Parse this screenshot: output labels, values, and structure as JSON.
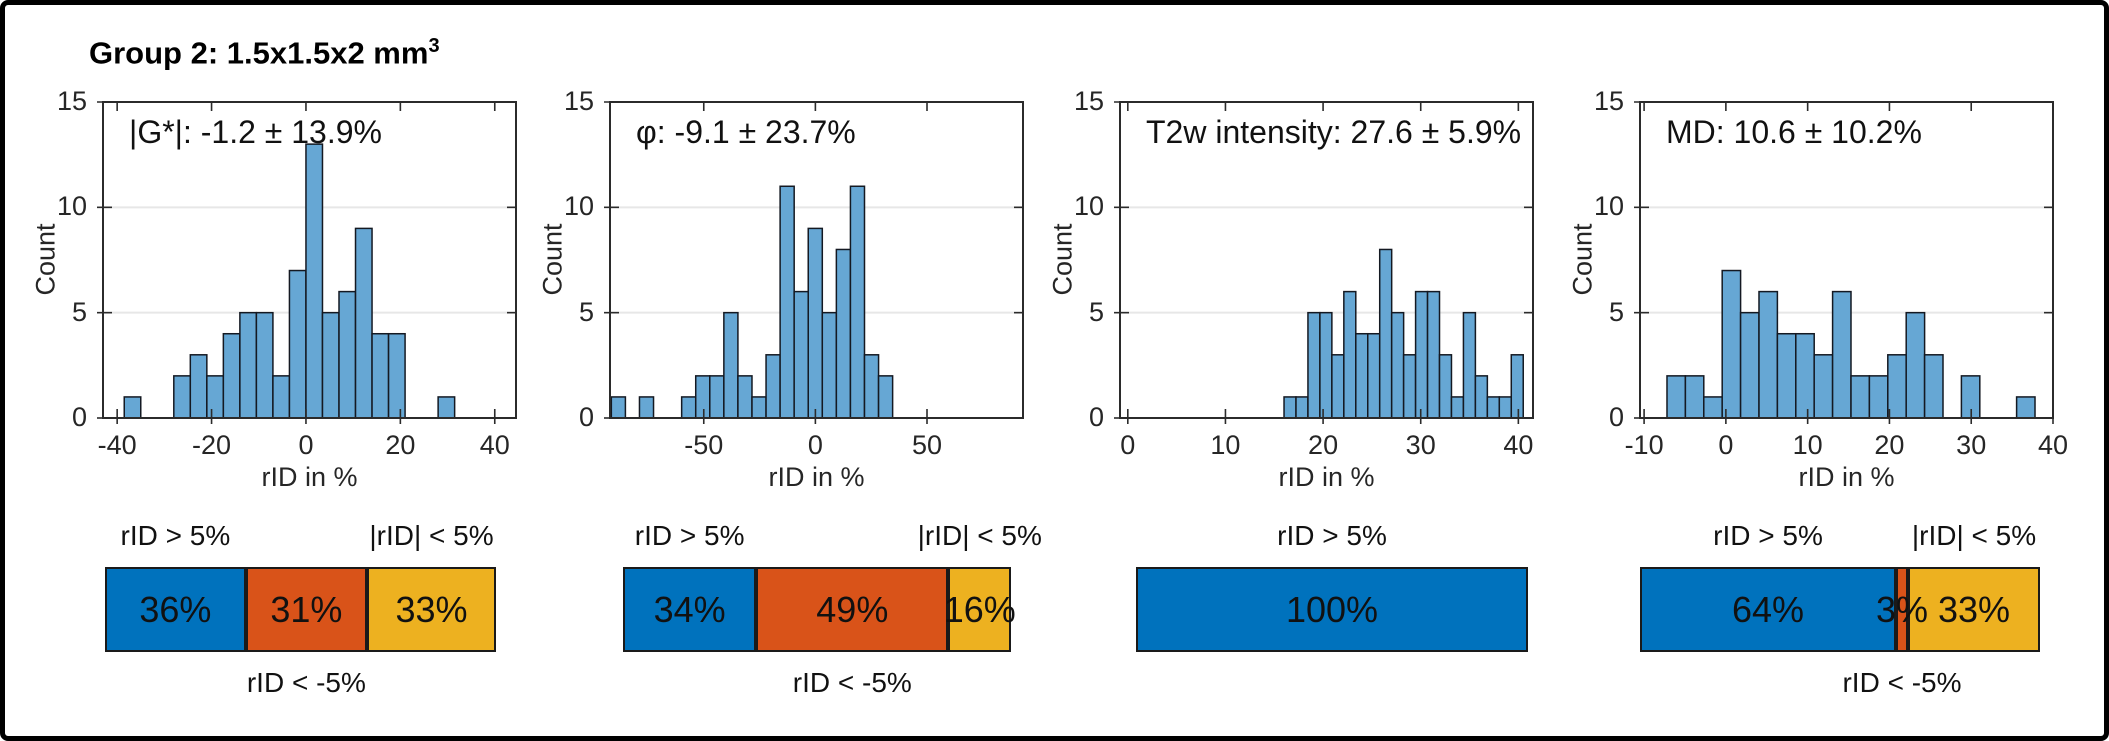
{
  "figure": {
    "title_text": "Group 2: 1.5x1.5x2 mm",
    "title_sup": "3"
  },
  "colors": {
    "blue": "#0072BD",
    "orange": "#D95319",
    "yellow": "#EDB120",
    "hist_fill": "#66A7D4",
    "hist_edge": "#141922",
    "grid": "#E7E7E7",
    "axis": "#2B2B2B",
    "text": "#000000",
    "background": "#FFFFFF",
    "border": "#000000"
  },
  "chart_data": [
    {
      "type": "histogram",
      "annotation": "|G*|: -1.2 ± 13.9%",
      "xlabel": "rID in %",
      "ylabel": "Count",
      "xlim": [
        -43,
        44.5
      ],
      "ylim": [
        0,
        15
      ],
      "xticks": [
        -40,
        -20,
        0,
        20,
        40
      ],
      "yticks": [
        0,
        5,
        10,
        15
      ],
      "grid": "horizontal",
      "bin_start": -38.5,
      "bin_width": 3.5,
      "counts": [
        1,
        0,
        0,
        2,
        3,
        2,
        4,
        5,
        5,
        2,
        7,
        13,
        5,
        6,
        9,
        4,
        4,
        0,
        0,
        1
      ],
      "stacked_bar": {
        "segments": [
          {
            "label": "36%",
            "value": 36,
            "color_key": "blue"
          },
          {
            "label": "31%",
            "value": 31,
            "color_key": "orange"
          },
          {
            "label": "33%",
            "value": 33,
            "color_key": "yellow"
          }
        ],
        "label_top_left": "rID > 5%",
        "label_top_right": "|rID| < 5%",
        "label_bottom": "rID < -5%"
      }
    },
    {
      "type": "histogram",
      "annotation": "φ: -9.1 ± 23.7%",
      "xlabel": "rID in %",
      "ylabel": "Count",
      "xlim": [
        -92,
        93
      ],
      "ylim": [
        0,
        15
      ],
      "xticks": [
        -50,
        0,
        50
      ],
      "yticks": [
        0,
        5,
        10,
        15
      ],
      "grid": "horizontal",
      "bin_start": -91.4,
      "bin_width": 6.3,
      "counts": [
        1,
        0,
        1,
        0,
        0,
        1,
        2,
        2,
        5,
        2,
        1,
        3,
        11,
        6,
        9,
        5,
        8,
        11,
        3,
        2
      ],
      "stacked_bar": {
        "segments": [
          {
            "label": "34%",
            "value": 34,
            "color_key": "blue"
          },
          {
            "label": "49%",
            "value": 49,
            "color_key": "orange"
          },
          {
            "label": "16%",
            "value": 16,
            "color_key": "yellow"
          }
        ],
        "label_top_left": "rID > 5%",
        "label_top_right": "|rID| < 5%",
        "label_bottom": "rID < -5%"
      }
    },
    {
      "type": "histogram",
      "annotation": "T2w intensity: 27.6 ± 5.9%",
      "xlabel": "rID in %",
      "ylabel": "Count",
      "xlim": [
        -0.8,
        41.5
      ],
      "ylim": [
        0,
        15
      ],
      "xticks": [
        0,
        10,
        20,
        30,
        40
      ],
      "yticks": [
        0,
        5,
        10,
        15
      ],
      "grid": "horizontal",
      "bin_start": 16.0,
      "bin_width": 1.225,
      "counts": [
        1,
        1,
        5,
        5,
        3,
        6,
        4,
        4,
        8,
        5,
        3,
        6,
        6,
        3,
        1,
        5,
        2,
        1,
        1,
        3
      ],
      "stacked_bar": {
        "segments": [
          {
            "label": "100%",
            "value": 100,
            "color_key": "blue"
          }
        ],
        "label_top_center": "rID > 5%"
      }
    },
    {
      "type": "histogram",
      "annotation": "MD: 10.6 ± 10.2%",
      "xlabel": "rID in %",
      "ylabel": "Count",
      "xlim": [
        -10.5,
        40
      ],
      "ylim": [
        0,
        15
      ],
      "xticks": [
        -10,
        0,
        10,
        20,
        30,
        40
      ],
      "yticks": [
        0,
        5,
        10,
        15
      ],
      "grid": "horizontal",
      "bin_start": -7.2,
      "bin_width": 2.25,
      "counts": [
        2,
        2,
        1,
        7,
        5,
        6,
        4,
        4,
        3,
        6,
        2,
        2,
        3,
        5,
        3,
        0,
        2,
        0,
        0,
        1
      ],
      "stacked_bar": {
        "segments": [
          {
            "label": "64%",
            "value": 64,
            "color_key": "blue"
          },
          {
            "label": "3%",
            "value": 3,
            "color_key": "orange"
          },
          {
            "label": "33%",
            "value": 33,
            "color_key": "yellow"
          }
        ],
        "label_top_left": "rID > 5%",
        "label_top_right": "|rID| < 5%",
        "label_bottom": "rID < -5%"
      }
    }
  ]
}
